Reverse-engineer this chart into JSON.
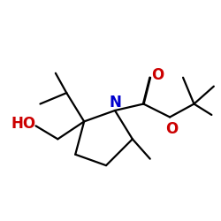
{
  "background_color": "#ffffff",
  "bond_color": "#000000",
  "nitrogen_color": "#0000cd",
  "oxygen_color": "#cc0000",
  "label_N": "N",
  "label_O_carbonyl": "O",
  "label_O_ester": "O",
  "label_HO": "HO",
  "fig_width": 2.5,
  "fig_height": 2.5,
  "dpi": 100,
  "lw": 1.6,
  "font_size": 12
}
